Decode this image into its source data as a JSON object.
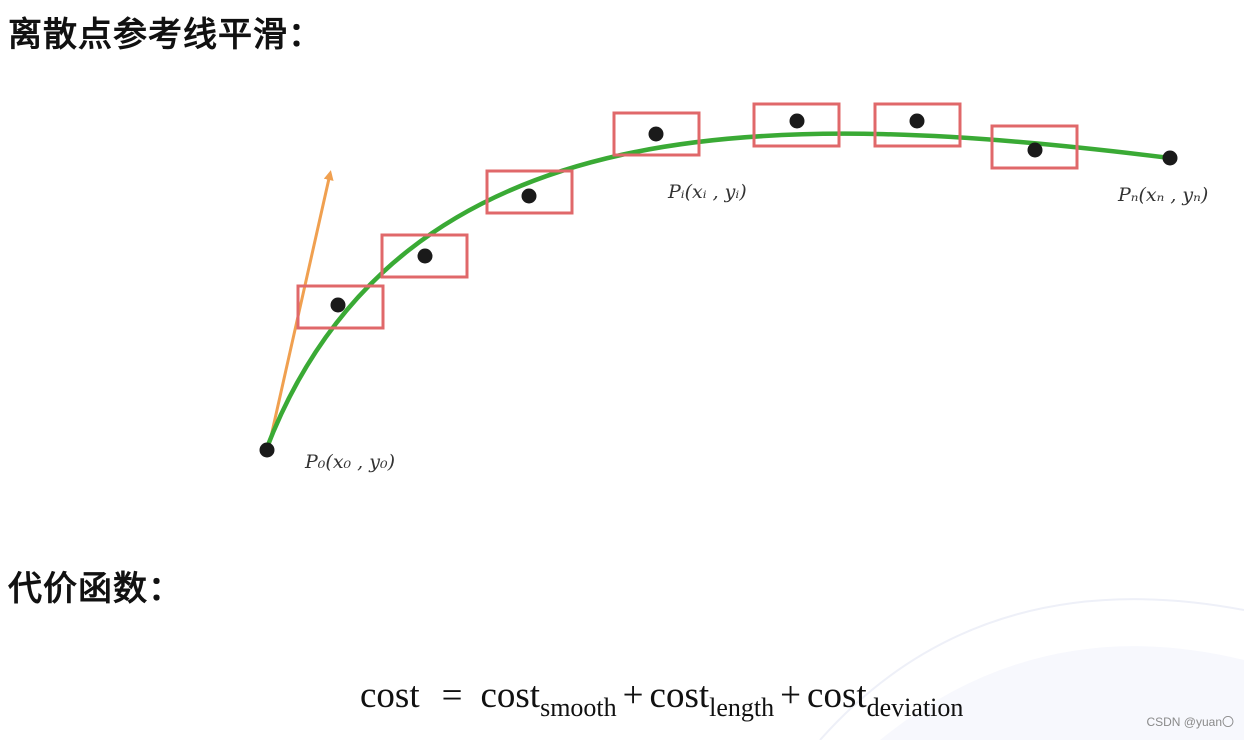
{
  "headings": {
    "smoothing": "离散点参考线平滑：",
    "cost_function": "代价函数："
  },
  "diagram": {
    "start_label": "P₀(x₀ , y₀)",
    "mid_label": "Pᵢ(xᵢ , yᵢ)",
    "end_label": "Pₙ(xₙ , yₙ)",
    "colors": {
      "curve": "#3aaa35",
      "heading_arrow": "#f0a050",
      "box": "#e0686a",
      "point": "#1a1a1a"
    }
  },
  "formula": {
    "lhs": "cost",
    "eq": "=",
    "terms": [
      {
        "base": "cost",
        "sub": "smooth"
      },
      {
        "base": "cost",
        "sub": "length"
      },
      {
        "base": "cost",
        "sub": "deviation"
      }
    ],
    "plus": "+"
  },
  "watermark": "CSDN @yuan〇"
}
